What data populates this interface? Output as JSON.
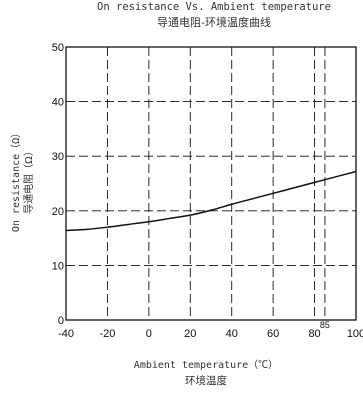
{
  "chart_data": {
    "type": "line",
    "title": "On resistance Vs. Ambient temperature",
    "subtitle": "导通电阻-环境温度曲线",
    "xlabel": "Ambient temperature（℃）",
    "xlabel_cn": "环境温度",
    "ylabel": "On resistance（Ω）",
    "ylabel_cn": "导通电阻（Ω）",
    "xlim": [
      -40,
      100
    ],
    "ylim": [
      0,
      50
    ],
    "x_ticks": [
      -40,
      -20,
      0,
      20,
      40,
      60,
      80,
      100
    ],
    "x_tick_labels": [
      "-40",
      "-20",
      "0",
      "20",
      "40",
      "60",
      "80",
      "100"
    ],
    "extra_x_tick": {
      "value": 85,
      "label": "85"
    },
    "y_ticks": [
      0,
      10,
      20,
      30,
      40,
      50
    ],
    "y_tick_labels": [
      "0",
      "10",
      "20",
      "30",
      "40",
      "50"
    ],
    "grid": true,
    "grid_style": "dashed",
    "series": [
      {
        "x": [
          -40,
          -30,
          -20,
          -10,
          0,
          10,
          20,
          30,
          40,
          50,
          60,
          70,
          80,
          90,
          100
        ],
        "y": [
          16.4,
          16.6,
          17.0,
          17.5,
          18.0,
          18.6,
          19.2,
          20.1,
          21.2,
          22.2,
          23.2,
          24.2,
          25.2,
          26.2,
          27.2
        ]
      }
    ]
  }
}
